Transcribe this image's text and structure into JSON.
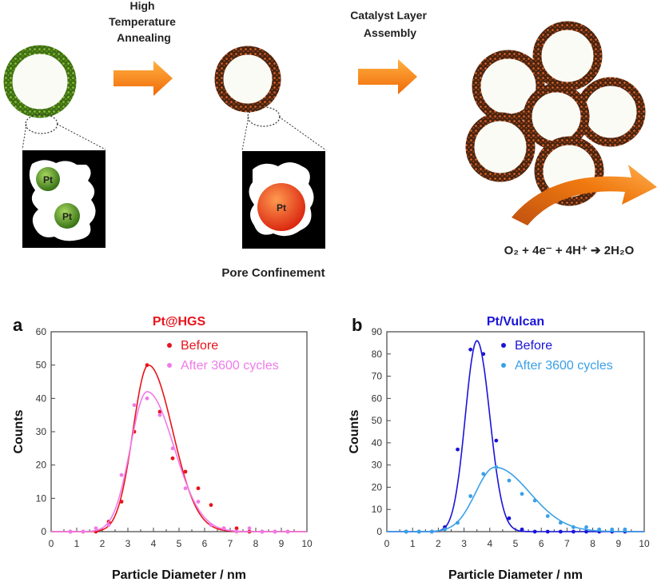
{
  "scheme": {
    "step1_label": [
      "High",
      "Temperature",
      "Annealing"
    ],
    "step2_label": [
      "Catalyst Layer",
      "Assembly"
    ],
    "particle_label": "Pt",
    "pore_caption": "Pore Confinement",
    "reaction": "O₂ + 4e⁻ + 4H⁺ ➔ 2H₂O",
    "colors": {
      "green_shell": "#5a8a1e",
      "orange_shell": "#c2501c",
      "arrow": "#f07a10",
      "pt_green": "#4e8a1a",
      "pt_orange": "#e8401a"
    }
  },
  "chart_data": [
    {
      "type": "scatter",
      "panel_letter": "a",
      "title": "Pt@HGS",
      "title_color": "#e8141c",
      "xlabel": "Particle Diameter / nm",
      "ylabel": "Counts",
      "xlim": [
        0,
        10
      ],
      "ylim": [
        0,
        60
      ],
      "xticks": [
        "0",
        "1",
        "2",
        "3",
        "4",
        "5",
        "6",
        "7",
        "8",
        "9",
        "10"
      ],
      "yticks": [
        "0",
        "10",
        "20",
        "30",
        "40",
        "50",
        "60"
      ],
      "series": [
        {
          "name": "Before",
          "color": "#e8141c",
          "points": [
            [
              0.75,
              0
            ],
            [
              1.25,
              0
            ],
            [
              1.75,
              0
            ],
            [
              2.25,
              3
            ],
            [
              2.75,
              9
            ],
            [
              3.25,
              30
            ],
            [
              3.75,
              50
            ],
            [
              4.25,
              36
            ],
            [
              4.75,
              22
            ],
            [
              5.25,
              18
            ],
            [
              5.75,
              13
            ],
            [
              6.25,
              8
            ],
            [
              6.75,
              1
            ],
            [
              7.25,
              1
            ],
            [
              7.75,
              0
            ],
            [
              8.25,
              0
            ],
            [
              8.75,
              0
            ],
            [
              9.25,
              0
            ]
          ],
          "fit": {
            "peak": 50,
            "center": 3.8,
            "sigma_left": 0.6,
            "sigma_right": 0.95
          }
        },
        {
          "name": "After 3600 cycles",
          "color": "#f07ae8",
          "points": [
            [
              0.75,
              0
            ],
            [
              1.25,
              0
            ],
            [
              1.75,
              1
            ],
            [
              2.25,
              2
            ],
            [
              2.75,
              17
            ],
            [
              3.25,
              38
            ],
            [
              3.75,
              40
            ],
            [
              4.25,
              35
            ],
            [
              4.75,
              25
            ],
            [
              5.25,
              13
            ],
            [
              5.75,
              9
            ],
            [
              6.25,
              2
            ],
            [
              6.75,
              1
            ],
            [
              7.25,
              0
            ],
            [
              7.75,
              1
            ],
            [
              8.25,
              0
            ],
            [
              8.75,
              0
            ],
            [
              9.25,
              0
            ]
          ],
          "fit": {
            "peak": 42,
            "center": 3.75,
            "sigma_left": 0.65,
            "sigma_right": 1.05
          }
        }
      ]
    },
    {
      "type": "scatter",
      "panel_letter": "b",
      "title": "Pt/Vulcan",
      "title_color": "#1a14d8",
      "xlabel": "Particle Diameter / nm",
      "ylabel": "Counts",
      "xlim": [
        0,
        10
      ],
      "ylim": [
        0,
        90
      ],
      "xticks": [
        "0",
        "1",
        "2",
        "3",
        "4",
        "5",
        "6",
        "7",
        "8",
        "9",
        "10"
      ],
      "yticks": [
        "0",
        "10",
        "20",
        "30",
        "40",
        "50",
        "60",
        "70",
        "80",
        "90"
      ],
      "series": [
        {
          "name": "Before",
          "color": "#1a14d8",
          "points": [
            [
              0.75,
              0
            ],
            [
              1.25,
              0
            ],
            [
              1.75,
              0
            ],
            [
              2.25,
              2
            ],
            [
              2.75,
              37
            ],
            [
              3.25,
              82
            ],
            [
              3.75,
              80
            ],
            [
              4.25,
              41
            ],
            [
              4.75,
              6
            ],
            [
              5.25,
              1
            ],
            [
              5.75,
              0
            ],
            [
              6.25,
              0
            ],
            [
              6.75,
              0
            ],
            [
              7.25,
              0
            ],
            [
              7.75,
              0
            ],
            [
              8.25,
              0
            ],
            [
              8.75,
              0
            ],
            [
              9.25,
              0
            ]
          ],
          "fit": {
            "peak": 86,
            "center": 3.5,
            "sigma_left": 0.45,
            "sigma_right": 0.5
          }
        },
        {
          "name": "After 3600 cycles",
          "color": "#3aa0e8",
          "points": [
            [
              0.75,
              0
            ],
            [
              1.25,
              0
            ],
            [
              1.75,
              0
            ],
            [
              2.25,
              1
            ],
            [
              2.75,
              4
            ],
            [
              3.25,
              16
            ],
            [
              3.75,
              26
            ],
            [
              4.25,
              29
            ],
            [
              4.75,
              23
            ],
            [
              5.25,
              17
            ],
            [
              5.75,
              14
            ],
            [
              6.25,
              7
            ],
            [
              6.75,
              4
            ],
            [
              7.25,
              2
            ],
            [
              7.75,
              2
            ],
            [
              8.25,
              1
            ],
            [
              8.75,
              1
            ],
            [
              9.25,
              1
            ]
          ],
          "fit": {
            "peak": 29,
            "center": 4.2,
            "sigma_left": 0.75,
            "sigma_right": 1.35
          }
        }
      ]
    }
  ]
}
